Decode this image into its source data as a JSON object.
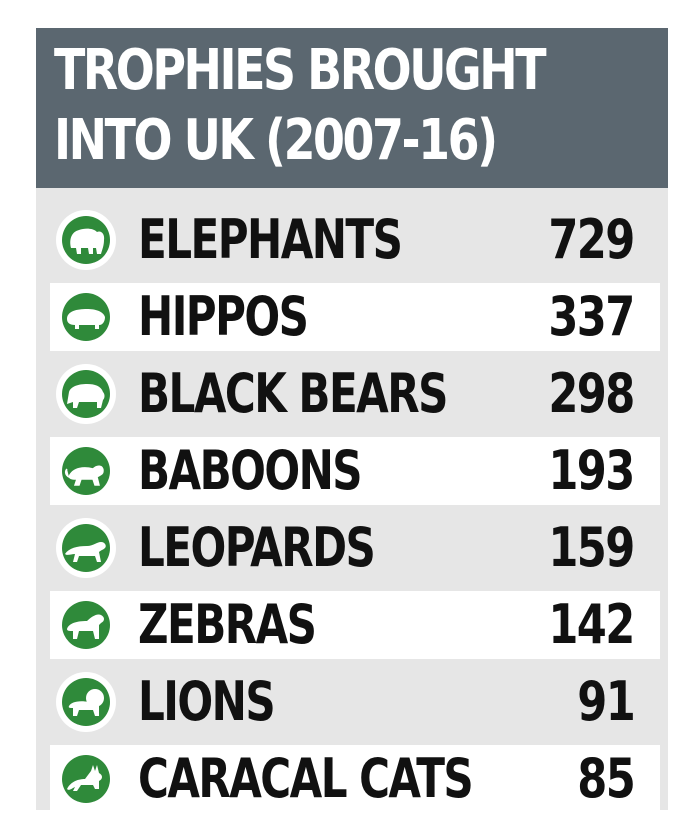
{
  "title_line1": "TROPHIES BROUGHT",
  "title_line2": "INTO UK (2007-16)",
  "colors": {
    "header_bg": "#5b6770",
    "panel_bg": "#e6e6e6",
    "row_alt_bg": "#ffffff",
    "icon_green": "#2f8a3a",
    "text": "#111111"
  },
  "chart_data": {
    "type": "table",
    "title": "TROPHIES BROUGHT INTO UK (2007-16)",
    "categories": [
      "ELEPHANTS",
      "HIPPOS",
      "BLACK BEARS",
      "BABOONS",
      "LEOPARDS",
      "ZEBRAS",
      "LIONS",
      "CARACAL CATS"
    ],
    "values": [
      729,
      337,
      298,
      193,
      159,
      142,
      91,
      85
    ],
    "icons": [
      "elephant-icon",
      "hippo-icon",
      "bear-icon",
      "baboon-icon",
      "leopard-icon",
      "zebra-icon",
      "lion-icon",
      "caracal-icon"
    ]
  }
}
